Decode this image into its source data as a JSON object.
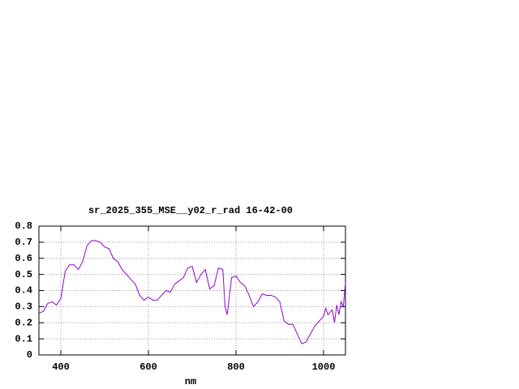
{
  "chart_data": {
    "type": "line",
    "title": "sr_2025_355_MSE__y02_r_rad 16-42-00",
    "x_label": "nm",
    "x": [
      350,
      360,
      370,
      380,
      390,
      400,
      410,
      420,
      430,
      440,
      450,
      460,
      470,
      480,
      490,
      500,
      510,
      520,
      530,
      540,
      550,
      560,
      570,
      580,
      590,
      600,
      610,
      620,
      630,
      640,
      650,
      660,
      670,
      680,
      690,
      700,
      710,
      720,
      730,
      740,
      750,
      760,
      770,
      775,
      780,
      790,
      800,
      810,
      820,
      830,
      840,
      850,
      860,
      870,
      880,
      890,
      900,
      910,
      920,
      930,
      940,
      950,
      960,
      970,
      980,
      990,
      1000,
      1005,
      1010,
      1020,
      1025,
      1030,
      1035,
      1040,
      1045,
      1050
    ],
    "series": [
      {
        "color": "#9400d3",
        "values": [
          0.26,
          0.27,
          0.32,
          0.33,
          0.31,
          0.35,
          0.52,
          0.56,
          0.56,
          0.53,
          0.58,
          0.68,
          0.71,
          0.71,
          0.7,
          0.67,
          0.66,
          0.6,
          0.58,
          0.53,
          0.5,
          0.47,
          0.44,
          0.37,
          0.34,
          0.36,
          0.34,
          0.34,
          0.37,
          0.4,
          0.39,
          0.44,
          0.46,
          0.48,
          0.54,
          0.55,
          0.45,
          0.5,
          0.53,
          0.41,
          0.43,
          0.54,
          0.53,
          0.3,
          0.25,
          0.48,
          0.49,
          0.45,
          0.43,
          0.37,
          0.3,
          0.33,
          0.38,
          0.37,
          0.37,
          0.36,
          0.33,
          0.21,
          0.19,
          0.19,
          0.13,
          0.07,
          0.08,
          0.13,
          0.18,
          0.21,
          0.24,
          0.29,
          0.25,
          0.28,
          0.2,
          0.31,
          0.25,
          0.33,
          0.3,
          0.45
        ]
      }
    ],
    "xlim": [
      350,
      1050
    ],
    "xticks": [
      400,
      600,
      800,
      1000
    ],
    "ylim": [
      0,
      0.8
    ],
    "yticks": [
      0,
      0.1,
      0.2,
      0.3,
      0.4,
      0.5,
      0.6,
      0.7,
      0.8
    ],
    "grid": true
  }
}
